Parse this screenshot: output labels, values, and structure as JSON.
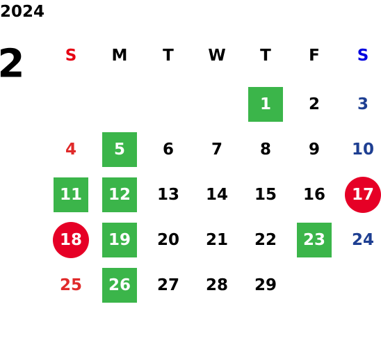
{
  "year": "2024",
  "month": "2",
  "weekdays": [
    "S",
    "M",
    "T",
    "W",
    "T",
    "F",
    "S"
  ],
  "weeks": [
    [
      null,
      null,
      null,
      null,
      {
        "day": "1",
        "mark": "green"
      },
      {
        "day": "2",
        "mark": "none"
      },
      {
        "day": "3",
        "mark": "none"
      }
    ],
    [
      {
        "day": "4",
        "mark": "none"
      },
      {
        "day": "5",
        "mark": "green"
      },
      {
        "day": "6",
        "mark": "none"
      },
      {
        "day": "7",
        "mark": "none"
      },
      {
        "day": "8",
        "mark": "none"
      },
      {
        "day": "9",
        "mark": "none"
      },
      {
        "day": "10",
        "mark": "none"
      }
    ],
    [
      {
        "day": "11",
        "mark": "green"
      },
      {
        "day": "12",
        "mark": "green"
      },
      {
        "day": "13",
        "mark": "none"
      },
      {
        "day": "14",
        "mark": "none"
      },
      {
        "day": "15",
        "mark": "none"
      },
      {
        "day": "16",
        "mark": "none"
      },
      {
        "day": "17",
        "mark": "red"
      }
    ],
    [
      {
        "day": "18",
        "mark": "red"
      },
      {
        "day": "19",
        "mark": "green"
      },
      {
        "day": "20",
        "mark": "none"
      },
      {
        "day": "21",
        "mark": "none"
      },
      {
        "day": "22",
        "mark": "none"
      },
      {
        "day": "23",
        "mark": "green"
      },
      {
        "day": "24",
        "mark": "none"
      }
    ],
    [
      {
        "day": "25",
        "mark": "none"
      },
      {
        "day": "26",
        "mark": "green"
      },
      {
        "day": "27",
        "mark": "none"
      },
      {
        "day": "28",
        "mark": "none"
      },
      {
        "day": "29",
        "mark": "none"
      },
      null,
      null
    ]
  ]
}
